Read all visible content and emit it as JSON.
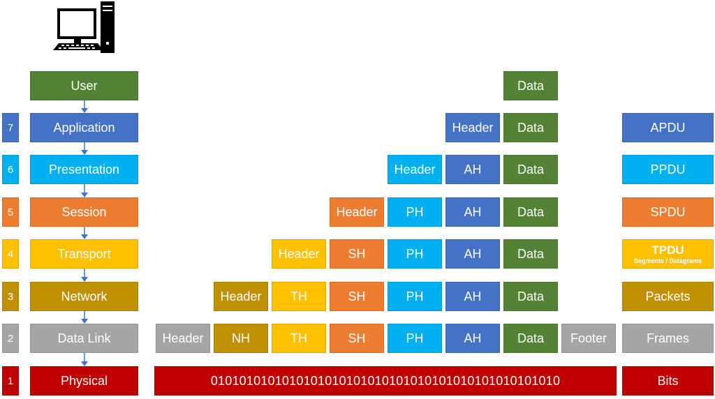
{
  "colors": {
    "user": "#548235",
    "application": "#4472c4",
    "presentation": "#00b0f0",
    "session": "#ed7d31",
    "transport": "#ffc000",
    "network": "#bf9000",
    "datalink": "#a5a5a5",
    "physical": "#c00000",
    "data": "#548235",
    "arrow": "#4472c4"
  },
  "icon": "desktop-computer-icon",
  "layers": [
    {
      "key": "user",
      "number": "",
      "name": "User"
    },
    {
      "key": "application",
      "number": "7",
      "name": "Application"
    },
    {
      "key": "presentation",
      "number": "6",
      "name": "Presentation"
    },
    {
      "key": "session",
      "number": "5",
      "name": "Session"
    },
    {
      "key": "transport",
      "number": "4",
      "name": "Transport"
    },
    {
      "key": "network",
      "number": "3",
      "name": "Network"
    },
    {
      "key": "datalink",
      "number": "2",
      "name": "Data Link"
    },
    {
      "key": "physical",
      "number": "1",
      "name": "Physical"
    }
  ],
  "encapsulation": {
    "user": [
      "Data"
    ],
    "application": [
      "Header",
      "Data"
    ],
    "presentation": [
      "Header",
      "AH",
      "Data"
    ],
    "session": [
      "Header",
      "PH",
      "AH",
      "Data"
    ],
    "transport": [
      "Header",
      "SH",
      "PH",
      "AH",
      "Data"
    ],
    "network": [
      "Header",
      "TH",
      "SH",
      "PH",
      "AH",
      "Data"
    ],
    "datalink": [
      "Header",
      "NH",
      "TH",
      "SH",
      "PH",
      "AH",
      "Data",
      "Footer"
    ]
  },
  "bits_stream": "0101010101010101010101010101010101010101010101010",
  "pdus": {
    "application": {
      "label": "APDU"
    },
    "presentation": {
      "label": "PPDU"
    },
    "session": {
      "label": "SPDU"
    },
    "transport": {
      "label": "TPDU",
      "sub": "Segments / Datagrams"
    },
    "network": {
      "label": "Packets"
    },
    "datalink": {
      "label": "Frames"
    },
    "physical": {
      "label": "Bits"
    }
  }
}
